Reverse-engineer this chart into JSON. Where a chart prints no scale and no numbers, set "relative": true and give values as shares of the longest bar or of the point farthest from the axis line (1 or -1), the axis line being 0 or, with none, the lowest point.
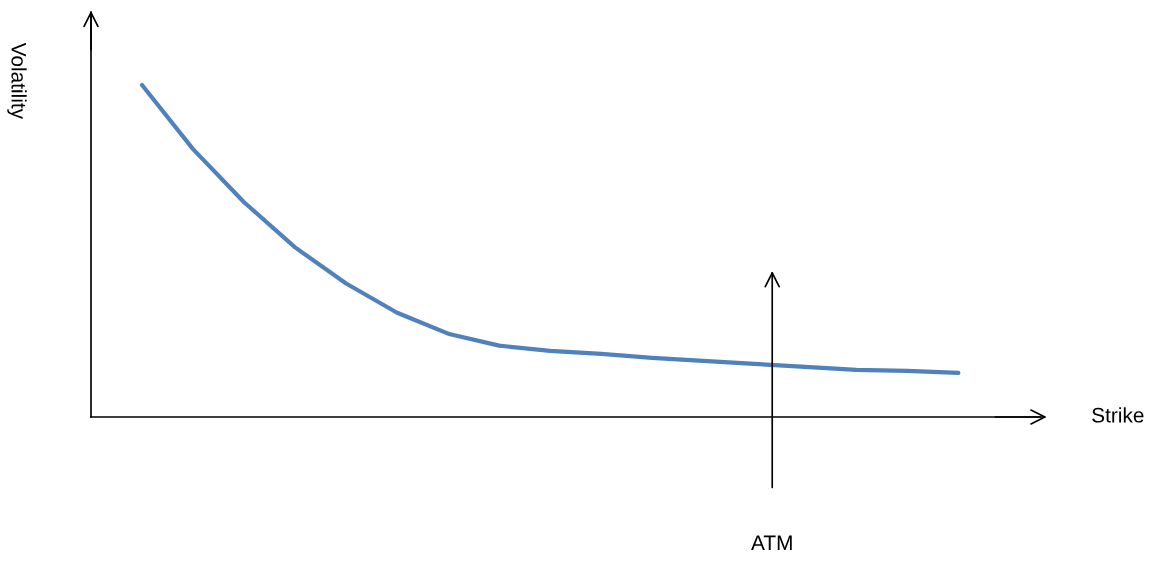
{
  "chart_data": {
    "type": "line",
    "relative": true,
    "ylabel": "Volatility",
    "categories": [
      null,
      null,
      null,
      null,
      null,
      null,
      null,
      null,
      null,
      null,
      null,
      null,
      null,
      null,
      null,
      null,
      null
    ],
    "series": [
      {
        "color": "#4f81bd",
        "values": [
          1,
          0.807,
          0.647,
          0.511,
          0.402,
          0.314,
          0.251,
          0.215,
          0.199,
          0.19,
          0.178,
          0.169,
          0.16,
          0.151,
          0.142,
          0.139,
          0.133
        ]
      }
    ],
    "annotations": [
      "Strike",
      "ATM"
    ],
    "grid": false,
    "legend": false,
    "marker": "none",
    "line_style": "solid"
  }
}
